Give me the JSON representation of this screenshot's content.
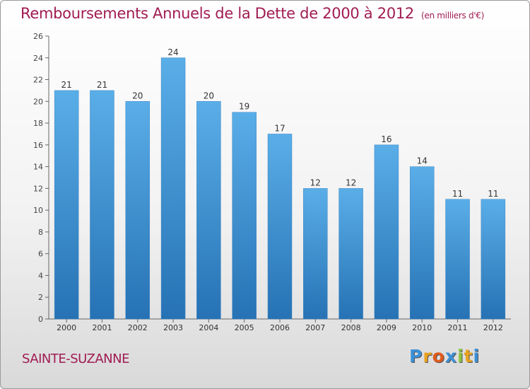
{
  "chart_data": {
    "type": "bar",
    "title": "Remboursements Annuels de la Dette de 2000 à 2012",
    "subtitle": "(en milliers d'€)",
    "categories": [
      "2000",
      "2001",
      "2002",
      "2003",
      "2004",
      "2005",
      "2006",
      "2007",
      "2008",
      "2009",
      "2010",
      "2011",
      "2012"
    ],
    "values": [
      21,
      21,
      20,
      24,
      20,
      19,
      17,
      12,
      12,
      16,
      14,
      11,
      11
    ],
    "ylim": [
      0,
      26
    ],
    "yticks": [
      0,
      2,
      4,
      6,
      8,
      10,
      12,
      14,
      16,
      18,
      20,
      22,
      24,
      26
    ],
    "grid": false,
    "legend": "none",
    "bar_color_top": "#5aaee8",
    "bar_color_bottom": "#2672b4"
  },
  "footer": {
    "city": "SAINTE-SUZANNE",
    "logo_letters": [
      "P",
      "r",
      "o",
      "x",
      "i",
      "t",
      "i"
    ],
    "logo_colors": [
      "#3b8fd6",
      "#e8a21f",
      "#e05a1d",
      "#3b8fd6",
      "#8cc63f",
      "#e8a21f",
      "#3b8fd6"
    ]
  }
}
